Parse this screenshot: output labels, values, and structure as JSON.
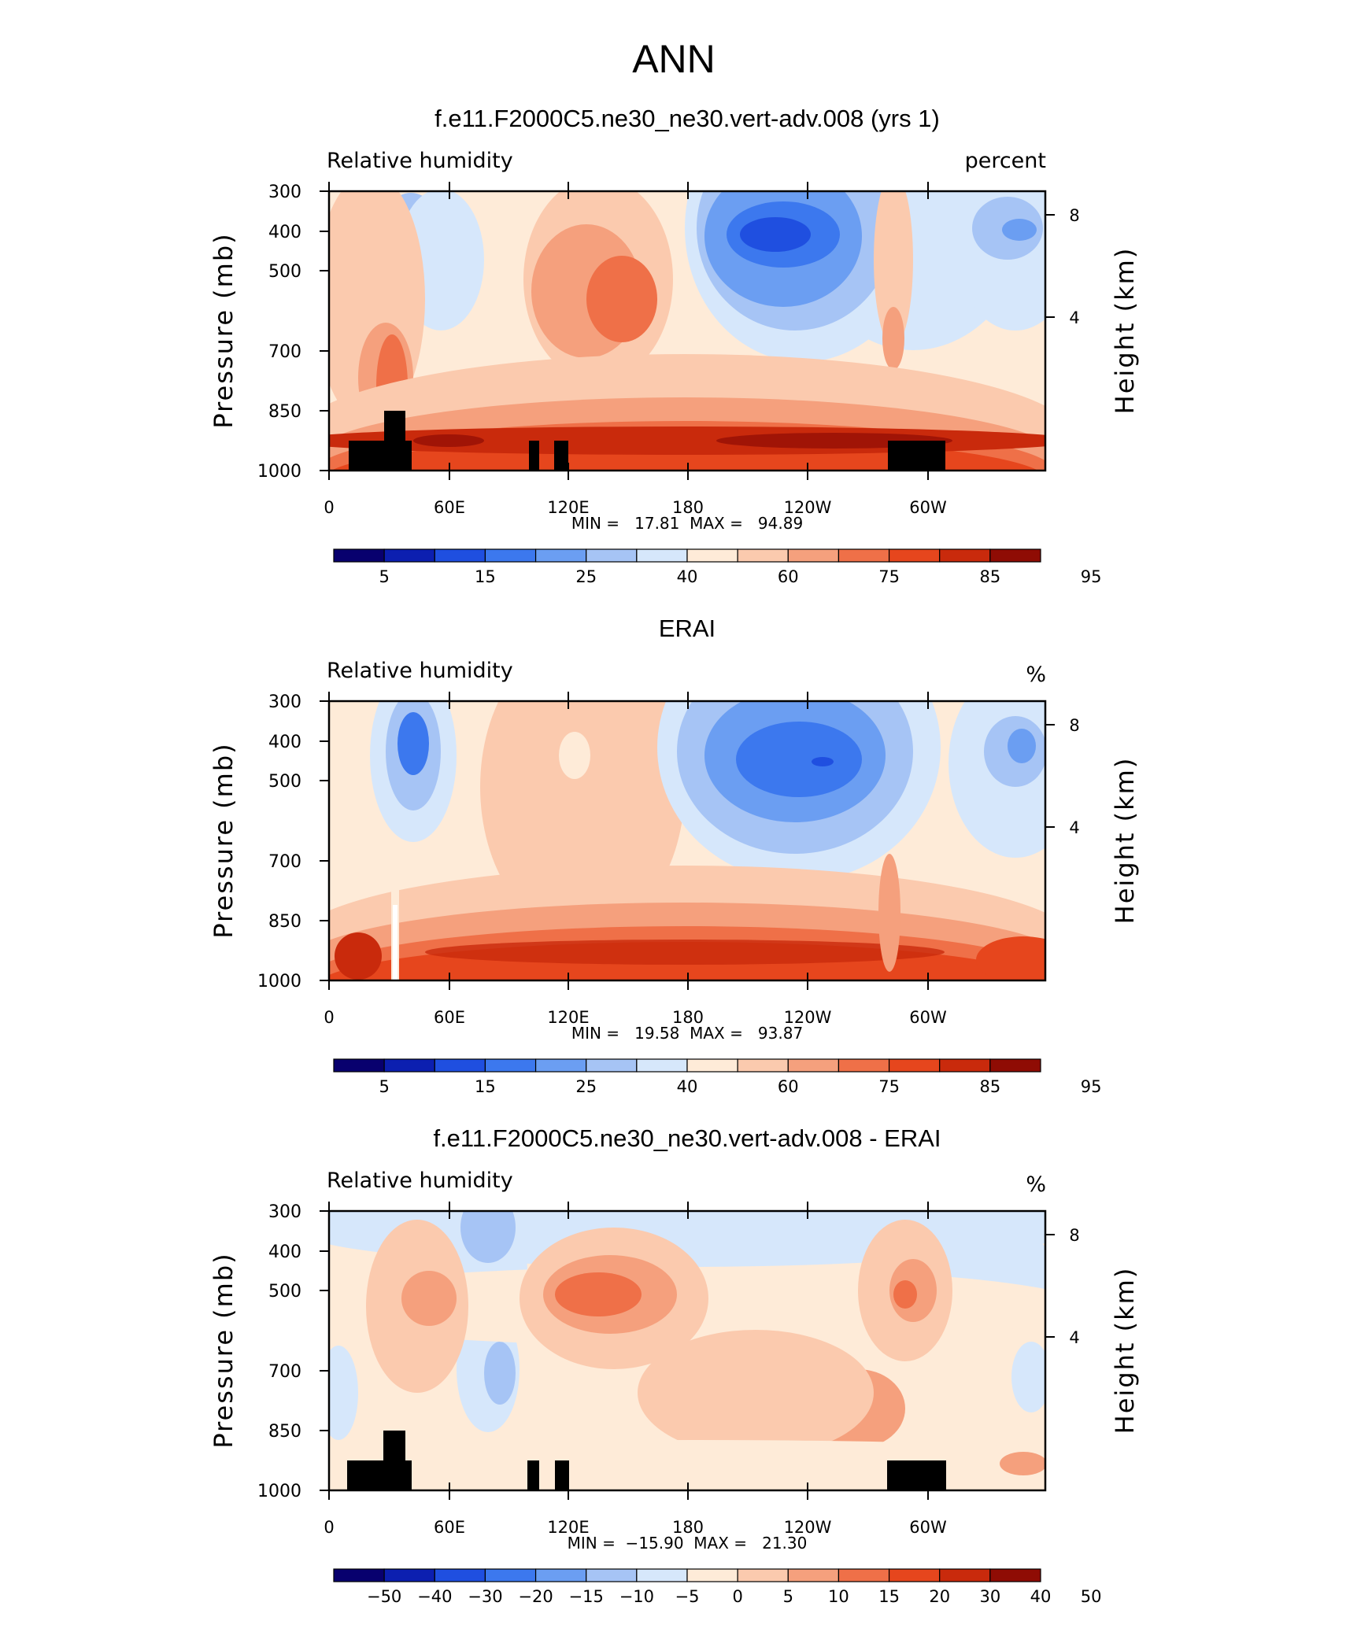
{
  "figure_title": "ANN",
  "chart_data": [
    {
      "type": "heatmap",
      "title": "f.e11.F2000C5.ne30_ne30.vert-adv.008 (yrs 1)",
      "left_label": "Relative humidity",
      "right_label": "percent",
      "ylabel": "Pressure (mb)",
      "y2label": "Height (km)",
      "x_ticks": [
        "0",
        "60E",
        "120E",
        "180",
        "120W",
        "60W"
      ],
      "y_ticks": [
        "300",
        "400",
        "500",
        "700",
        "850",
        "1000"
      ],
      "y2_ticks": [
        "8",
        "4"
      ],
      "stats_text": "MIN =   17.81  MAX =   94.89",
      "min": 17.81,
      "max": 94.89,
      "colorbar_labels": [
        "5",
        "15",
        "25",
        "40",
        "60",
        "75",
        "85",
        "95"
      ],
      "terrain_mask": true
    },
    {
      "type": "heatmap",
      "title": "ERAI",
      "left_label": "Relative humidity",
      "right_label": "%",
      "ylabel": "Pressure (mb)",
      "y2label": "Height (km)",
      "x_ticks": [
        "0",
        "60E",
        "120E",
        "180",
        "120W",
        "60W"
      ],
      "y_ticks": [
        "300",
        "400",
        "500",
        "700",
        "850",
        "1000"
      ],
      "y2_ticks": [
        "8",
        "4"
      ],
      "stats_text": "MIN =   19.58  MAX =   93.87",
      "min": 19.58,
      "max": 93.87,
      "colorbar_labels": [
        "5",
        "15",
        "25",
        "40",
        "60",
        "75",
        "85",
        "95"
      ],
      "terrain_mask": false
    },
    {
      "type": "heatmap",
      "title": "f.e11.F2000C5.ne30_ne30.vert-adv.008 - ERAI",
      "left_label": "Relative humidity",
      "right_label": "%",
      "ylabel": "Pressure (mb)",
      "y2label": "Height (km)",
      "x_ticks": [
        "0",
        "60E",
        "120E",
        "180",
        "120W",
        "60W"
      ],
      "y_ticks": [
        "300",
        "400",
        "500",
        "700",
        "850",
        "1000"
      ],
      "y2_ticks": [
        "8",
        "4"
      ],
      "stats_text": "MIN =  −15.90  MAX =   21.30",
      "min": -15.9,
      "max": 21.3,
      "colorbar_labels": [
        "−50",
        "−40",
        "−30",
        "−20",
        "−15",
        "−10",
        "−5",
        "0",
        "5",
        "10",
        "15",
        "20",
        "30",
        "40",
        "50"
      ],
      "terrain_mask": true
    }
  ],
  "colors": {
    "palette": [
      "#08006e",
      "#0c1fb0",
      "#1f4fe0",
      "#3c78ee",
      "#6b9ef2",
      "#a6c4f5",
      "#d6e7fb",
      "#feebd8",
      "#fbcaae",
      "#f5a07d",
      "#ef7048",
      "#e6461d",
      "#c92a0c",
      "#8f0c04"
    ],
    "terrain": "#000000",
    "frame": "#000000"
  }
}
